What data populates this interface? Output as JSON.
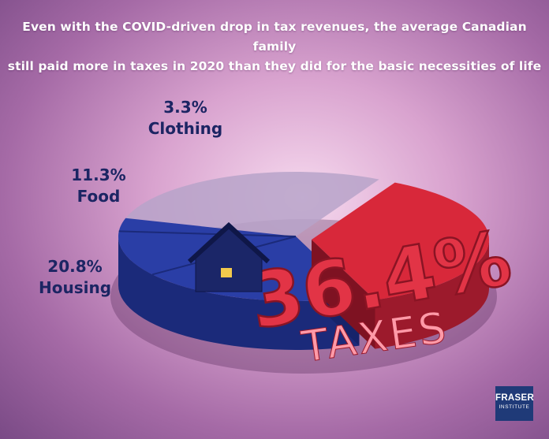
{
  "title_lines": [
    "Even with the COVID-driven drop in tax revenues, the average Canadian family",
    "still paid more in taxes in 2020 than they did for the basic necessities of life"
  ],
  "chart_data": {
    "type": "pie",
    "title": "Even with the COVID-driven drop in tax revenues, the average Canadian family still paid more in taxes in 2020 than they did for the basic necessities of life",
    "unit": "%",
    "slices": [
      {
        "label": "Taxes",
        "display_label": "TAXES",
        "value": 36.4,
        "value_text": "36.4%",
        "color": "#d8283a"
      },
      {
        "label": "Housing",
        "value": 20.8,
        "value_text": "20.8%",
        "color": "#2a3ea6"
      },
      {
        "label": "Food",
        "value": 11.3,
        "value_text": "11.3%",
        "color": "#2a3ea6"
      },
      {
        "label": "Clothing",
        "value": 3.3,
        "value_text": "3.3%",
        "color": "#2a3ea6"
      }
    ],
    "colors": {
      "taxes": "#d8283a",
      "taxes_side": "#9c1a2c",
      "necessities": "#2a3ea6",
      "necessities_side": "#1b2a7a",
      "other": "#b7a3c9",
      "label_text": "#1c2563"
    }
  },
  "logo": {
    "line1": "FRASER",
    "line2": "INSTITUTE"
  }
}
